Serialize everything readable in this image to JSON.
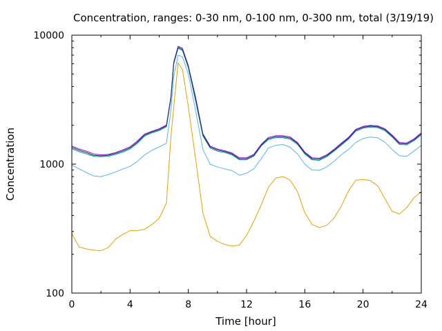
{
  "chart_data": {
    "type": "line",
    "title": "Concentration, ranges: 0-30 nm, 0-100 nm, 0-300 nm, total (3/19/19)",
    "xlabel": "Time [hour]",
    "ylabel": "Concentration",
    "xlim": [
      0,
      24
    ],
    "ylim": [
      100,
      10000
    ],
    "yscale": "log",
    "grid": false,
    "legend": "none",
    "x_ticks": [
      0,
      4,
      8,
      12,
      16,
      20,
      24
    ],
    "x_tick_labels": [
      "0",
      "4",
      "8",
      "12",
      "16",
      "20",
      "24"
    ],
    "y_ticks": [
      100,
      1000,
      10000
    ],
    "y_tick_labels": [
      "100",
      "1000",
      "10000"
    ],
    "x": [
      0,
      0.5,
      1,
      1.5,
      2,
      2.5,
      3,
      3.5,
      4,
      4.5,
      5,
      5.5,
      6,
      6.5,
      6.8,
      7,
      7.3,
      7.6,
      8,
      8.5,
      9,
      9.5,
      10,
      10.5,
      11,
      11.5,
      12,
      12.5,
      13,
      13.5,
      14,
      14.5,
      15,
      15.5,
      16,
      16.5,
      17,
      17.5,
      18,
      18.5,
      19,
      19.5,
      20,
      20.5,
      21,
      21.5,
      22,
      22.5,
      23,
      23.5,
      24
    ],
    "series": [
      {
        "name": "0-30 nm",
        "color": "#e69f00",
        "values": [
          290,
          228,
          220,
          215,
          213,
          225,
          262,
          285,
          305,
          305,
          312,
          340,
          380,
          500,
          1600,
          2800,
          6100,
          5400,
          2800,
          1100,
          420,
          275,
          252,
          238,
          232,
          235,
          280,
          360,
          480,
          660,
          780,
          800,
          750,
          610,
          420,
          340,
          322,
          335,
          380,
          470,
          620,
          750,
          760,
          745,
          680,
          540,
          430,
          410,
          460,
          550,
          610
        ]
      },
      {
        "name": "0-100 nm",
        "color": "#56b4e9",
        "values": [
          980,
          920,
          860,
          810,
          800,
          830,
          870,
          915,
          960,
          1050,
          1180,
          1280,
          1360,
          1450,
          2600,
          4800,
          7000,
          6800,
          5000,
          2600,
          1300,
          1000,
          950,
          920,
          890,
          820,
          850,
          920,
          1100,
          1330,
          1400,
          1420,
          1350,
          1200,
          1000,
          900,
          895,
          950,
          1050,
          1180,
          1300,
          1470,
          1580,
          1620,
          1600,
          1480,
          1300,
          1160,
          1150,
          1260,
          1400
        ]
      },
      {
        "name": "0-300 nm",
        "color": "#009e73",
        "values": [
          1320,
          1250,
          1200,
          1150,
          1140,
          1150,
          1190,
          1240,
          1310,
          1450,
          1650,
          1750,
          1820,
          1950,
          3200,
          6000,
          7900,
          7600,
          5600,
          3100,
          1650,
          1330,
          1260,
          1230,
          1180,
          1080,
          1080,
          1150,
          1380,
          1550,
          1600,
          1600,
          1560,
          1420,
          1200,
          1080,
          1070,
          1140,
          1260,
          1400,
          1560,
          1800,
          1900,
          1940,
          1920,
          1820,
          1620,
          1420,
          1410,
          1520,
          1690
        ]
      },
      {
        "name": "total",
        "color": "#9400d3",
        "values": [
          1380,
          1310,
          1260,
          1200,
          1180,
          1190,
          1230,
          1290,
          1360,
          1510,
          1710,
          1800,
          1880,
          2010,
          3300,
          6200,
          8200,
          7900,
          5800,
          3300,
          1720,
          1380,
          1310,
          1270,
          1220,
          1120,
          1120,
          1190,
          1420,
          1610,
          1660,
          1660,
          1620,
          1470,
          1240,
          1120,
          1110,
          1180,
          1300,
          1450,
          1610,
          1860,
          1960,
          2000,
          1980,
          1880,
          1680,
          1470,
          1460,
          1570,
          1750
        ]
      },
      {
        "name": "total (outline)",
        "color": "#1a3d6d",
        "values": [
          1350,
          1280,
          1230,
          1170,
          1160,
          1170,
          1210,
          1265,
          1335,
          1480,
          1680,
          1775,
          1850,
          1980,
          3250,
          6100,
          8050,
          7750,
          5700,
          3200,
          1690,
          1355,
          1285,
          1250,
          1200,
          1100,
          1100,
          1170,
          1400,
          1580,
          1630,
          1630,
          1590,
          1445,
          1220,
          1100,
          1090,
          1160,
          1280,
          1425,
          1585,
          1830,
          1930,
          1970,
          1950,
          1850,
          1650,
          1445,
          1435,
          1545,
          1720
        ]
      }
    ]
  }
}
